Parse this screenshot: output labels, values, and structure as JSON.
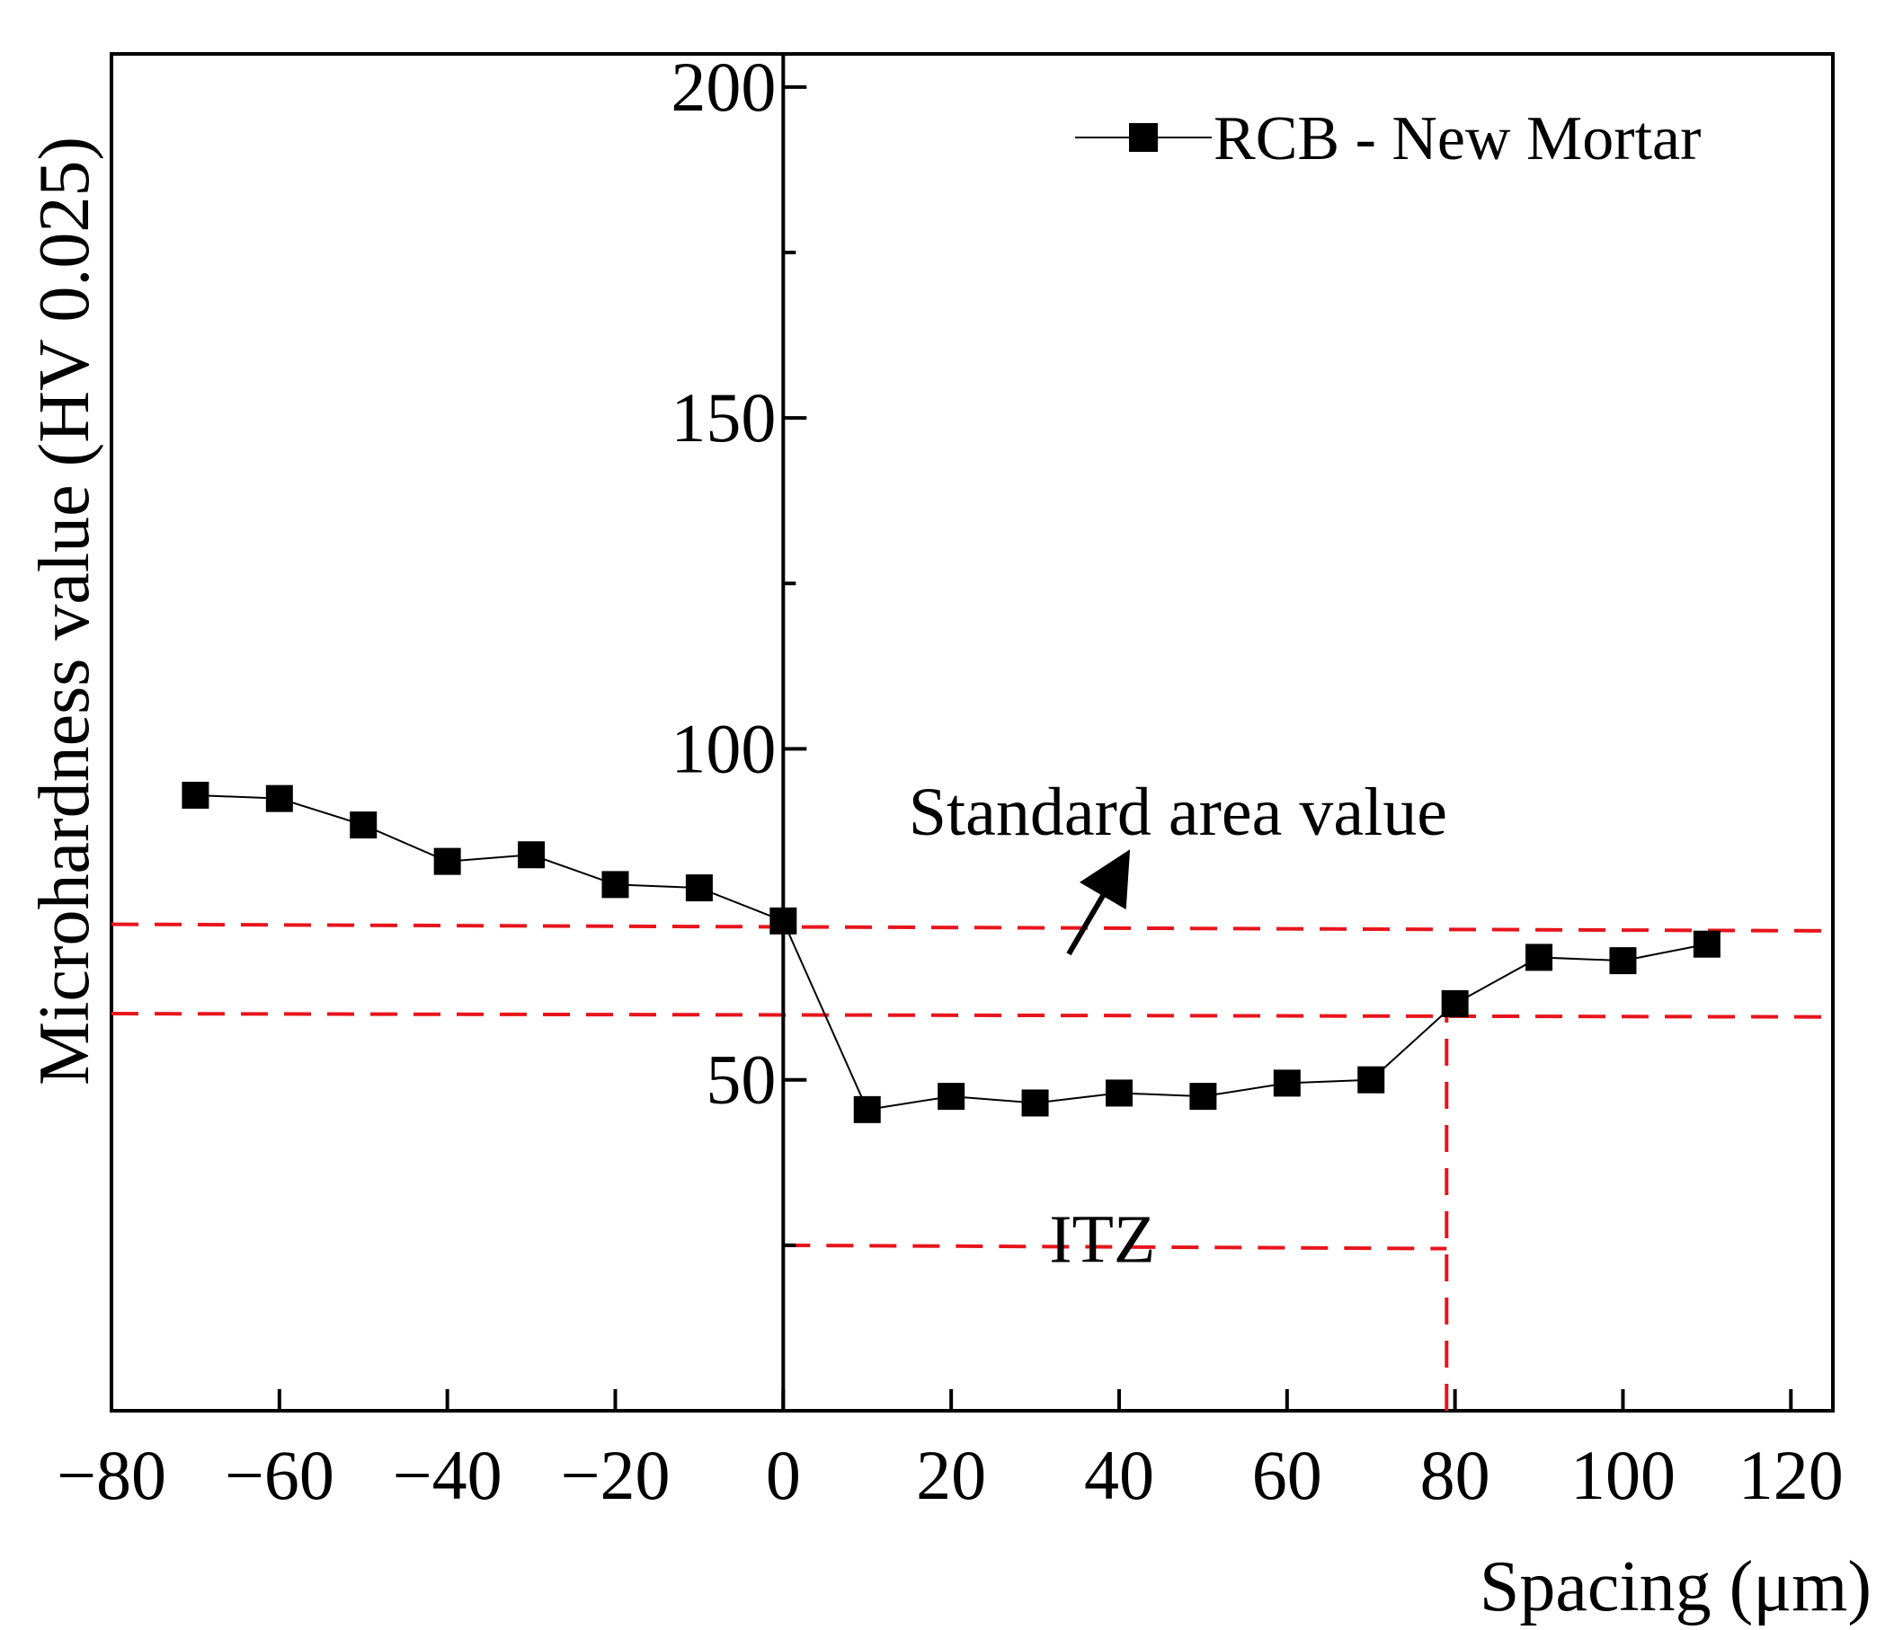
{
  "chart_data": {
    "type": "line",
    "title": "",
    "xlabel": "Spacing (μm)",
    "ylabel": "Microhardness value (HV 0.025)",
    "xlim": [
      -80,
      125
    ],
    "ylim": [
      0,
      205
    ],
    "x_ticks": [
      -80,
      -60,
      -40,
      -20,
      0,
      20,
      40,
      60,
      80,
      100,
      120
    ],
    "x_tick_labels": [
      "−80",
      "−60",
      "−40",
      "−20",
      "0",
      "20",
      "40",
      "60",
      "80",
      "100",
      "120"
    ],
    "y_ticks_major": [
      50,
      100,
      150,
      200
    ],
    "y_tick_labels": [
      "50",
      "100",
      "150",
      "200"
    ],
    "y_ticks_minor": [
      25,
      75,
      125,
      175
    ],
    "grid": false,
    "legend_position": "top-right",
    "series": [
      {
        "name": "RCB - New Mortar",
        "color": "#000000",
        "marker": "square",
        "x": [
          -70,
          -60,
          -50,
          -40,
          -30,
          -20,
          -10,
          0,
          10,
          20,
          30,
          40,
          50,
          60,
          70,
          80,
          90,
          100,
          110
        ],
        "y": [
          93,
          92.5,
          88.5,
          83,
          84,
          79.5,
          79,
          74,
          45.5,
          47.5,
          46.5,
          48,
          47.5,
          49.5,
          50,
          61.5,
          68.5,
          68,
          70.5
        ]
      }
    ],
    "reference_lines": [
      {
        "kind": "horizontal",
        "x_range": [
          -80,
          125
        ],
        "y": [
          73.5,
          72.5
        ],
        "color": "#e8141c",
        "style": "dashed"
      },
      {
        "kind": "horizontal",
        "x_range": [
          -80,
          125
        ],
        "y": [
          60,
          59.5
        ],
        "color": "#e8141c",
        "style": "dashed"
      },
      {
        "kind": "horizontal",
        "x_range": [
          0,
          79
        ],
        "y": [
          25,
          24.5
        ],
        "color": "#e8141c",
        "style": "dashed"
      },
      {
        "kind": "vertical",
        "x": 79,
        "y_range": [
          0,
          60
        ],
        "color": "#e8141c",
        "style": "dashed"
      }
    ],
    "annotations": [
      {
        "text": "Standard area value",
        "x": 47,
        "y": 87,
        "arrow_to": [
          40,
          82
        ],
        "arrow_from": [
          34,
          69
        ]
      },
      {
        "text": "ITZ",
        "x": 38,
        "y": 22.5
      }
    ]
  }
}
